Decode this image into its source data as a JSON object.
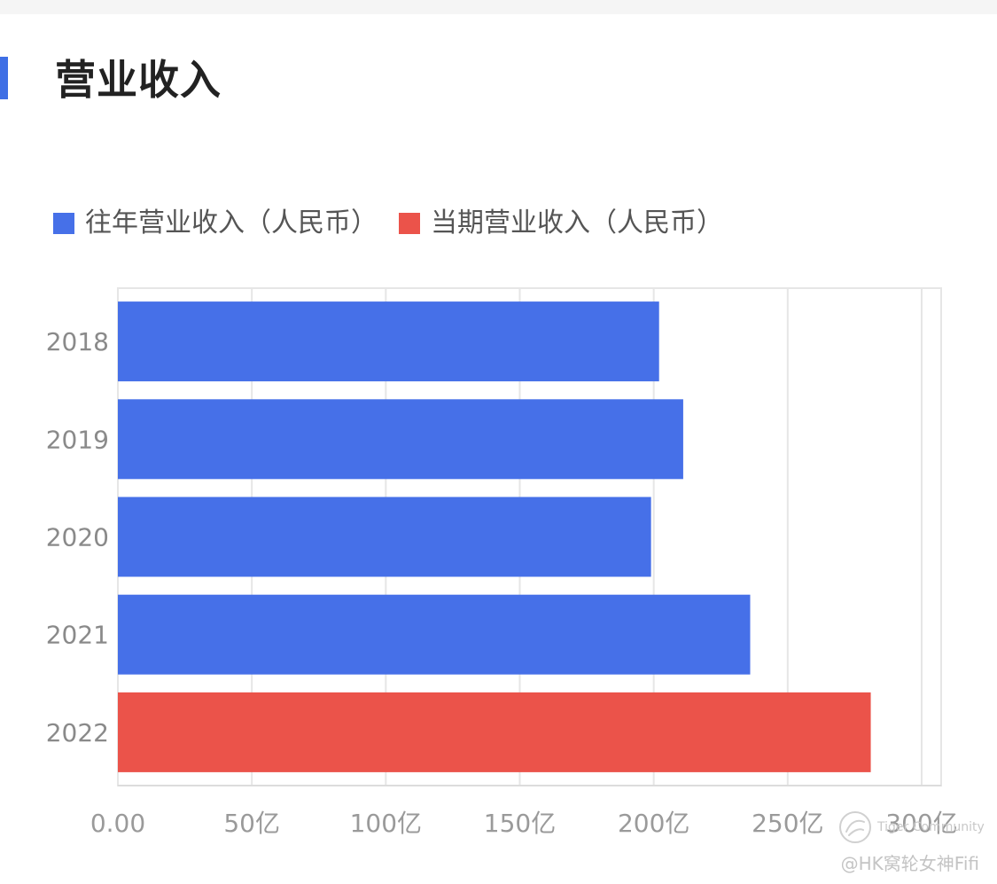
{
  "page": {
    "title": "营业收入",
    "accent_color": "#3f6fe5"
  },
  "legend": [
    {
      "label": "往年营业收入（人民币）",
      "color": "#4670e8"
    },
    {
      "label": "当期营业收入（人民币）",
      "color": "#eb534a"
    }
  ],
  "chart_data": {
    "type": "bar",
    "orientation": "horizontal",
    "categories": [
      "2018",
      "2019",
      "2020",
      "2021",
      "2022"
    ],
    "series": [
      {
        "name": "往年营业收入（人民币）",
        "values": [
          202,
          211,
          199,
          236,
          null
        ],
        "color": "#4670e8"
      },
      {
        "name": "当期营业收入（人民币）",
        "values": [
          null,
          null,
          null,
          null,
          281
        ],
        "color": "#eb534a"
      }
    ],
    "xlim": [
      0,
      300
    ],
    "xticks": [
      0,
      50,
      100,
      150,
      200,
      250,
      300
    ],
    "xtick_labels": [
      "0.00",
      "50亿",
      "100亿",
      "150亿",
      "200亿",
      "250亿",
      "300亿"
    ],
    "grid": true,
    "legend_position": "top-left",
    "title": "",
    "xlabel": "",
    "ylabel": ""
  },
  "watermark": {
    "logo_icon": "tiger-logo-icon",
    "text": "Tiger Community",
    "author": "@HK窝轮女神Fifi"
  }
}
